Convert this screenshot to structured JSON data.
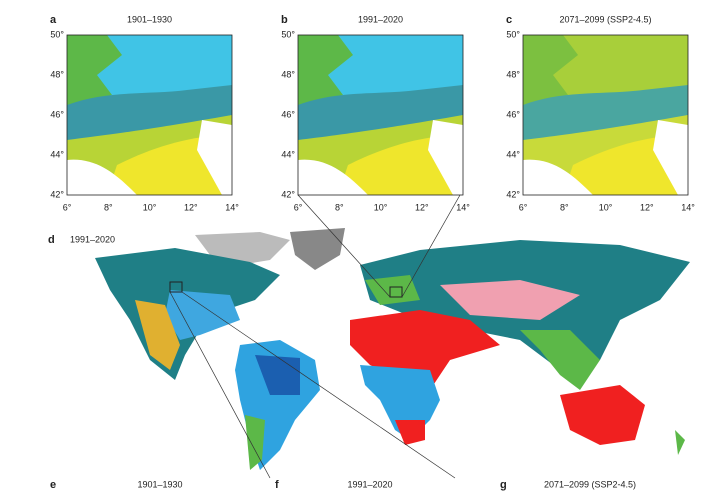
{
  "panels": [
    {
      "label": "a",
      "title": "1901–1930",
      "lat_ticks": [
        "50°",
        "48°",
        "46°",
        "44°",
        "42°"
      ],
      "lon_ticks": [
        "6°",
        "8°",
        "10°",
        "12°",
        "14°"
      ]
    },
    {
      "label": "b",
      "title": "1991–2020",
      "lat_ticks": [
        "50°",
        "48°",
        "46°",
        "44°",
        "42°"
      ],
      "lon_ticks": [
        "6°",
        "8°",
        "10°",
        "12°",
        "14°"
      ]
    },
    {
      "label": "c",
      "title": "2071–2099 (SSP2-4.5)",
      "lat_ticks": [
        "50°",
        "48°",
        "46°",
        "44°",
        "42°"
      ],
      "lon_ticks": [
        "6°",
        "8°",
        "10°",
        "12°",
        "14°"
      ]
    }
  ],
  "world": {
    "label": "d",
    "title": "1991–2020"
  },
  "bottom_panels": [
    {
      "label": "e",
      "title": "1901–1930"
    },
    {
      "label": "f",
      "title": "1991–2020"
    },
    {
      "label": "g",
      "title": "2071–2099 (SSP2-4.5)"
    }
  ]
}
